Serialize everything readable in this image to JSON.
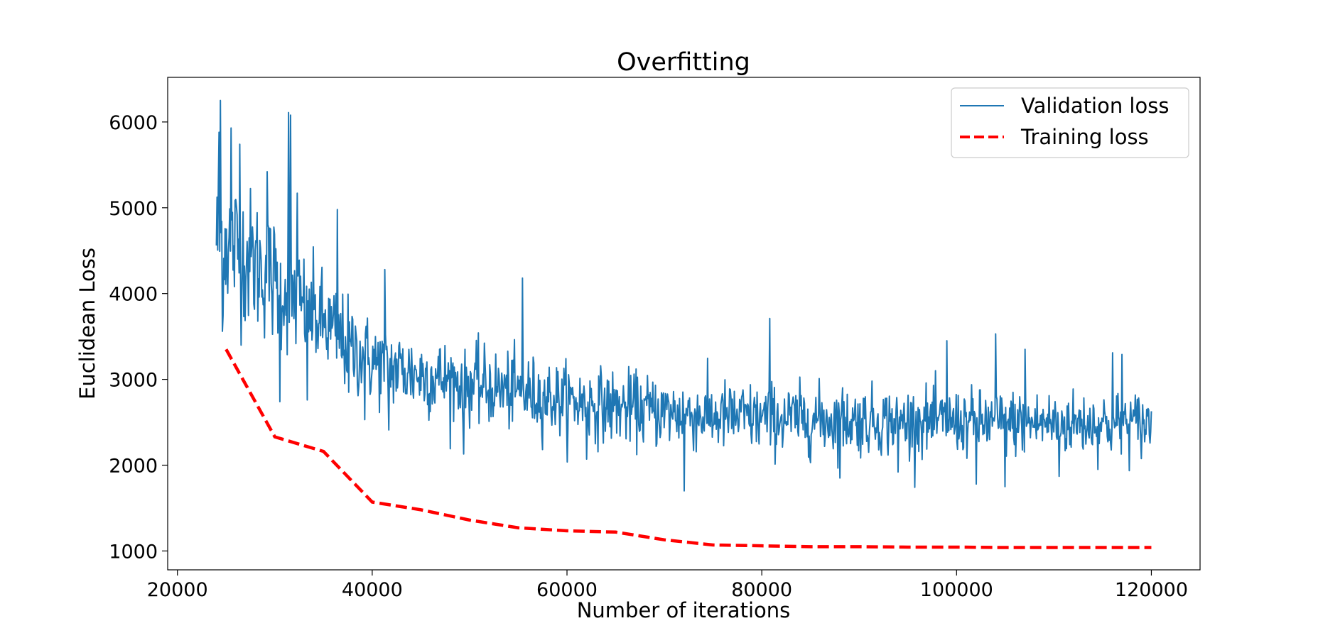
{
  "chart_data": {
    "type": "line",
    "title": "Overfitting",
    "xlabel": "Number of iterations",
    "ylabel": "Euclidean Loss",
    "xlim": [
      19000,
      125000
    ],
    "ylim": [
      780,
      6520
    ],
    "xticks": [
      20000,
      40000,
      60000,
      80000,
      100000,
      120000
    ],
    "xtick_labels": [
      "20000",
      "40000",
      "60000",
      "80000",
      "100000",
      "120000"
    ],
    "yticks": [
      1000,
      2000,
      3000,
      4000,
      5000,
      6000
    ],
    "ytick_labels": [
      "1000",
      "2000",
      "3000",
      "4000",
      "5000",
      "6000"
    ],
    "grid": false,
    "legend_position": "top-right",
    "series": [
      {
        "name": "Validation loss",
        "color": "#1f77b4",
        "style": "solid",
        "x_start": 24000,
        "x_end": 120000,
        "points": 1400,
        "trend": [
          [
            24000,
            4700
          ],
          [
            26000,
            4550
          ],
          [
            28000,
            4350
          ],
          [
            30000,
            4150
          ],
          [
            32000,
            3950
          ],
          [
            34000,
            3750
          ],
          [
            36000,
            3550
          ],
          [
            38000,
            3350
          ],
          [
            40000,
            3200
          ],
          [
            45000,
            3050
          ],
          [
            50000,
            2950
          ],
          [
            55000,
            2850
          ],
          [
            60000,
            2750
          ],
          [
            65000,
            2680
          ],
          [
            70000,
            2620
          ],
          [
            75000,
            2570
          ],
          [
            80000,
            2550
          ],
          [
            90000,
            2520
          ],
          [
            100000,
            2500
          ],
          [
            110000,
            2490
          ],
          [
            120000,
            2480
          ]
        ],
        "noise_amplitude": [
          [
            24000,
            600
          ],
          [
            30000,
            500
          ],
          [
            35000,
            400
          ],
          [
            40000,
            330
          ],
          [
            50000,
            300
          ],
          [
            60000,
            280
          ],
          [
            80000,
            270
          ],
          [
            100000,
            250
          ],
          [
            120000,
            250
          ]
        ],
        "peaks": [
          [
            24400,
            6250
          ],
          [
            24300,
            5880
          ],
          [
            24600,
            3560
          ],
          [
            25500,
            5930
          ],
          [
            26400,
            5740
          ],
          [
            29200,
            5420
          ],
          [
            30500,
            2740
          ],
          [
            31400,
            6110
          ],
          [
            31600,
            6080
          ],
          [
            32300,
            5170
          ],
          [
            33300,
            2760
          ],
          [
            36400,
            4980
          ],
          [
            37600,
            2850
          ],
          [
            39200,
            2530
          ],
          [
            41300,
            4280
          ],
          [
            41700,
            2410
          ],
          [
            49400,
            2130
          ],
          [
            55400,
            4180
          ],
          [
            62000,
            2070
          ],
          [
            72000,
            1700
          ],
          [
            80800,
            3710
          ],
          [
            88000,
            1850
          ],
          [
            94000,
            1920
          ],
          [
            99000,
            3450
          ],
          [
            102000,
            1780
          ],
          [
            104000,
            3530
          ],
          [
            105000,
            1750
          ],
          [
            107000,
            3350
          ],
          [
            110500,
            1870
          ],
          [
            116000,
            3310
          ],
          [
            117000,
            3290
          ]
        ]
      },
      {
        "name": "Training loss",
        "color": "#ff0000",
        "style": "dashed",
        "x": [
          25000,
          30000,
          35000,
          40000,
          45000,
          50000,
          55000,
          60000,
          65000,
          70000,
          75000,
          80000,
          85000,
          90000,
          95000,
          100000,
          105000,
          110000,
          115000,
          120000
        ],
        "values": [
          3350,
          2330,
          2160,
          1570,
          1480,
          1360,
          1270,
          1235,
          1220,
          1130,
          1070,
          1060,
          1050,
          1050,
          1045,
          1045,
          1040,
          1040,
          1040,
          1040
        ]
      }
    ]
  }
}
